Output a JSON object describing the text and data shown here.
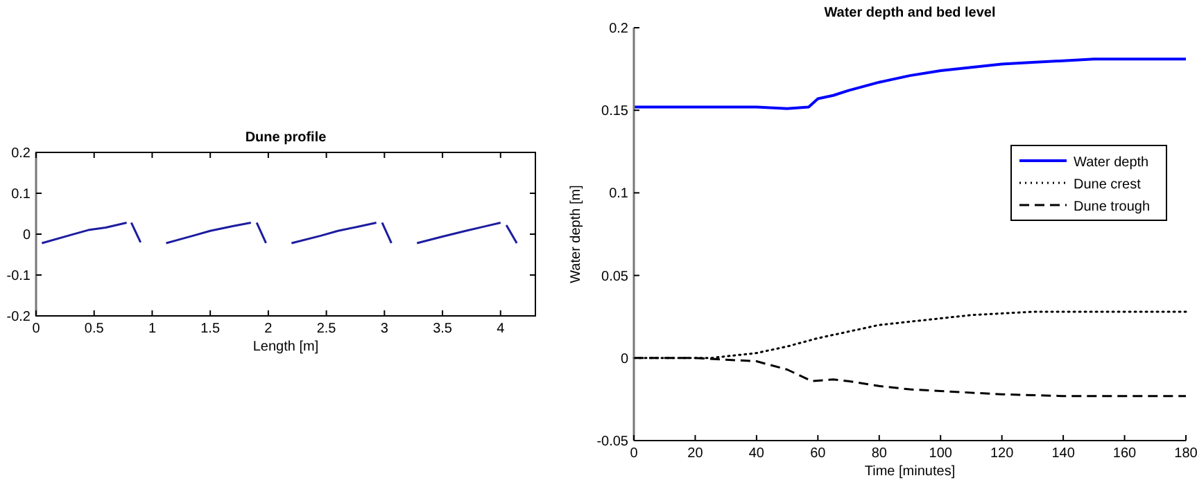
{
  "chart_data": [
    {
      "type": "line",
      "title": "Dune profile",
      "xlabel": "Length [m]",
      "xlim": [
        0,
        4.3
      ],
      "xticks": [
        0,
        0.5,
        1,
        1.5,
        2,
        2.5,
        3,
        3.5,
        4
      ],
      "ylim": [
        -0.2,
        0.2
      ],
      "yticks": [
        -0.2,
        -0.1,
        0,
        0.1,
        0.2
      ],
      "legend": false,
      "grid": false,
      "series": [
        {
          "color": "#1c1ca0",
          "line_style": "solid",
          "x": [
            0.05,
            0.3,
            0.45,
            0.6,
            0.78
          ],
          "values": [
            -0.022,
            -0.002,
            0.01,
            0.016,
            0.028
          ]
        },
        {
          "color": "#1c1ca0",
          "line_style": "solid",
          "x": [
            0.82,
            0.9
          ],
          "values": [
            0.028,
            -0.02
          ]
        },
        {
          "color": "#1c1ca0",
          "line_style": "solid",
          "x": [
            1.12,
            1.35,
            1.5,
            1.7,
            1.85
          ],
          "values": [
            -0.022,
            -0.004,
            0.008,
            0.02,
            0.028
          ]
        },
        {
          "color": "#1c1ca0",
          "line_style": "solid",
          "x": [
            1.9,
            1.98
          ],
          "values": [
            0.028,
            -0.022
          ]
        },
        {
          "color": "#1c1ca0",
          "line_style": "solid",
          "x": [
            2.2,
            2.45,
            2.6,
            2.8,
            2.93
          ],
          "values": [
            -0.022,
            -0.004,
            0.008,
            0.02,
            0.028
          ]
        },
        {
          "color": "#1c1ca0",
          "line_style": "solid",
          "x": [
            2.98,
            3.06
          ],
          "values": [
            0.028,
            -0.022
          ]
        },
        {
          "color": "#1c1ca0",
          "line_style": "solid",
          "x": [
            3.28,
            3.5,
            3.7,
            3.85,
            4.0
          ],
          "values": [
            -0.022,
            -0.006,
            0.008,
            0.018,
            0.028
          ]
        },
        {
          "color": "#1c1ca0",
          "line_style": "solid",
          "x": [
            4.05,
            4.14
          ],
          "values": [
            0.022,
            -0.022
          ]
        }
      ]
    },
    {
      "type": "line",
      "title": "Water depth and bed level",
      "xlabel": "Time [minutes]",
      "ylabel": "Water depth [m]",
      "xlim": [
        0,
        180
      ],
      "xticks": [
        0,
        20,
        40,
        60,
        80,
        100,
        120,
        140,
        160,
        180
      ],
      "ylim": [
        -0.05,
        0.2
      ],
      "yticks": [
        -0.05,
        0,
        0.05,
        0.1,
        0.15,
        0.2
      ],
      "legend": "right",
      "grid": false,
      "series": [
        {
          "name": "Water depth",
          "color": "#0000ff",
          "line_style": "solid",
          "x": [
            0,
            20,
            40,
            50,
            57,
            60,
            65,
            70,
            80,
            90,
            100,
            110,
            120,
            130,
            140,
            150,
            160,
            180
          ],
          "values": [
            0.152,
            0.152,
            0.152,
            0.151,
            0.152,
            0.157,
            0.159,
            0.162,
            0.167,
            0.171,
            0.174,
            0.176,
            0.178,
            0.179,
            0.18,
            0.181,
            0.181,
            0.181
          ]
        },
        {
          "name": "Dune crest",
          "color": "#000000",
          "line_style": "dotted",
          "x": [
            0,
            20,
            25,
            30,
            40,
            50,
            60,
            70,
            80,
            90,
            100,
            110,
            120,
            130,
            140,
            160,
            180
          ],
          "values": [
            0,
            0,
            0,
            0.001,
            0.003,
            0.007,
            0.012,
            0.016,
            0.02,
            0.022,
            0.024,
            0.026,
            0.027,
            0.028,
            0.028,
            0.028,
            0.028
          ]
        },
        {
          "name": "Dune trough",
          "color": "#000000",
          "line_style": "dashed",
          "x": [
            0,
            20,
            30,
            40,
            50,
            58,
            65,
            70,
            80,
            90,
            100,
            120,
            140,
            160,
            180
          ],
          "values": [
            0,
            0,
            -0.001,
            -0.002,
            -0.007,
            -0.014,
            -0.013,
            -0.014,
            -0.017,
            -0.019,
            -0.02,
            -0.022,
            -0.023,
            -0.023,
            -0.023
          ]
        }
      ]
    }
  ]
}
